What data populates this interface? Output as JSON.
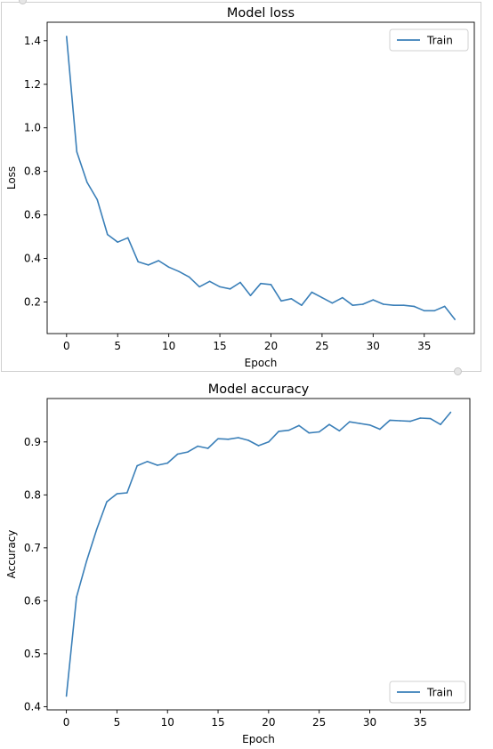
{
  "chart_data": [
    {
      "type": "line",
      "title": "Model loss",
      "xlabel": "Epoch",
      "ylabel": "Loss",
      "xlim": [
        -1.9,
        39.9
      ],
      "ylim": [
        0.055,
        1.485
      ],
      "xticks": [
        "0",
        "5",
        "10",
        "15",
        "20",
        "25",
        "30",
        "35"
      ],
      "yticks": [
        "0.2",
        "0.4",
        "0.6",
        "0.8",
        "1.0",
        "1.2",
        "1.4"
      ],
      "legend": "upper right",
      "grid": false,
      "color": "#3a7fb8",
      "series": [
        {
          "name": "Train",
          "x": [
            0,
            1,
            2,
            3,
            4,
            5,
            6,
            7,
            8,
            9,
            10,
            11,
            12,
            13,
            14,
            15,
            16,
            17,
            18,
            19,
            20,
            21,
            22,
            23,
            24,
            25,
            26,
            27,
            28,
            29,
            30,
            31,
            32,
            33,
            34,
            35,
            36,
            37,
            38
          ],
          "values": [
            1.42,
            0.89,
            0.75,
            0.67,
            0.51,
            0.475,
            0.495,
            0.385,
            0.37,
            0.39,
            0.36,
            0.34,
            0.315,
            0.27,
            0.295,
            0.27,
            0.26,
            0.29,
            0.23,
            0.285,
            0.28,
            0.205,
            0.215,
            0.185,
            0.245,
            0.22,
            0.195,
            0.22,
            0.185,
            0.19,
            0.21,
            0.19,
            0.185,
            0.185,
            0.18,
            0.16,
            0.16,
            0.18,
            0.12
          ]
        }
      ]
    },
    {
      "type": "line",
      "title": "Model accuracy",
      "xlabel": "Epoch",
      "ylabel": "Accuracy",
      "xlim": [
        -1.9,
        39.9
      ],
      "ylim": [
        0.394,
        0.982
      ],
      "xticks": [
        "0",
        "5",
        "10",
        "15",
        "20",
        "25",
        "30",
        "35"
      ],
      "yticks": [
        "0.4",
        "0.5",
        "0.6",
        "0.7",
        "0.8",
        "0.9"
      ],
      "legend": "lower right",
      "grid": false,
      "color": "#3a7fb8",
      "series": [
        {
          "name": "Train",
          "x": [
            0,
            1,
            2,
            3,
            4,
            5,
            6,
            7,
            8,
            9,
            10,
            11,
            12,
            13,
            14,
            15,
            16,
            17,
            18,
            19,
            20,
            21,
            22,
            23,
            24,
            25,
            26,
            27,
            28,
            29,
            30,
            31,
            32,
            33,
            34,
            35,
            36,
            37,
            38
          ],
          "values": [
            0.42,
            0.607,
            0.675,
            0.735,
            0.787,
            0.802,
            0.804,
            0.855,
            0.863,
            0.856,
            0.86,
            0.877,
            0.881,
            0.892,
            0.888,
            0.906,
            0.905,
            0.908,
            0.903,
            0.893,
            0.9,
            0.92,
            0.922,
            0.931,
            0.917,
            0.919,
            0.933,
            0.921,
            0.938,
            0.935,
            0.932,
            0.924,
            0.941,
            0.94,
            0.939,
            0.945,
            0.944,
            0.933,
            0.956
          ]
        }
      ]
    }
  ]
}
